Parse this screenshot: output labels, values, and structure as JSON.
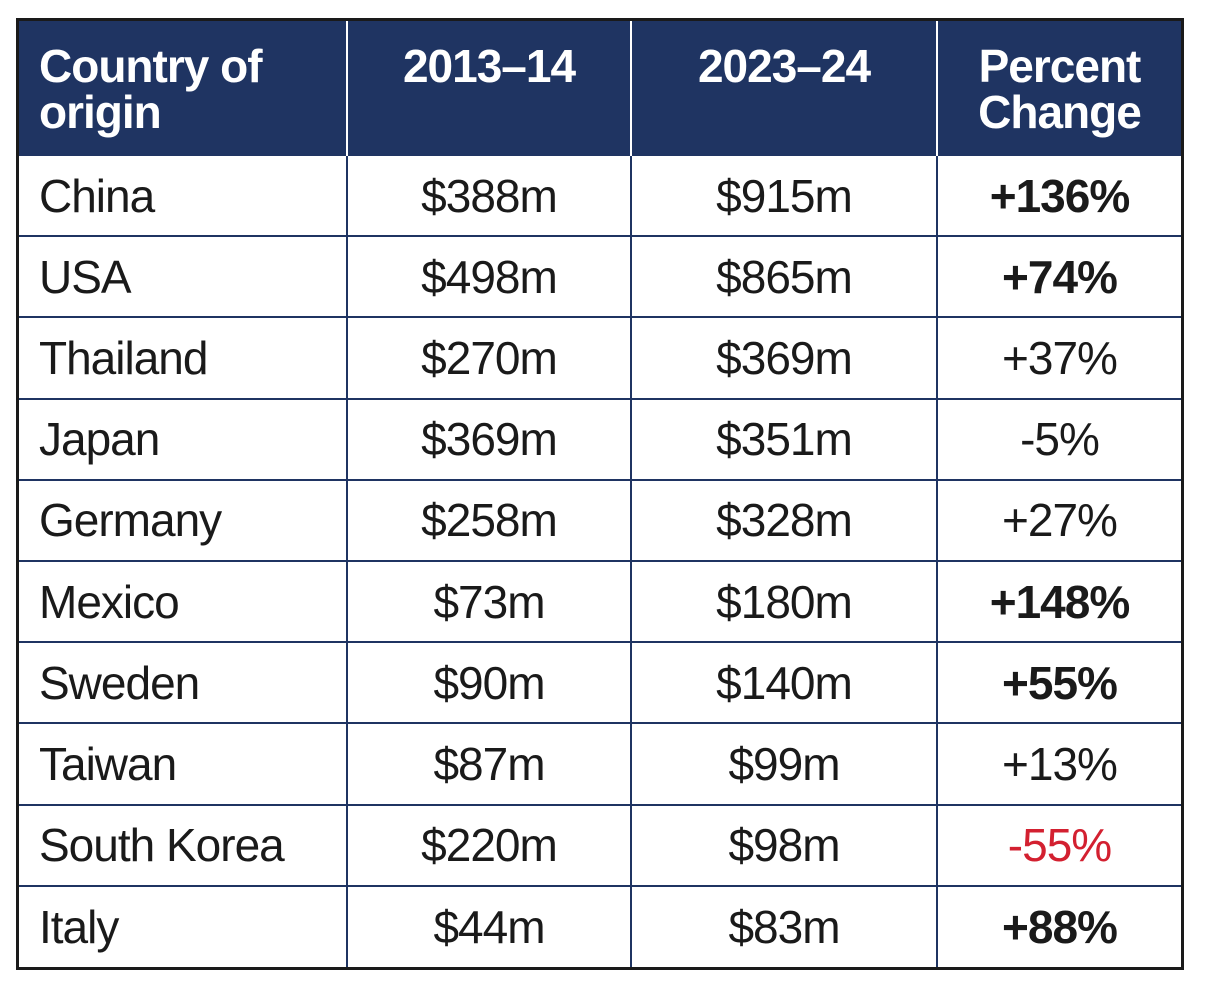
{
  "chart_data": {
    "type": "table",
    "columns": [
      "Country of origin",
      "2013–14",
      "2023–24",
      "Percent Change"
    ],
    "rows": [
      {
        "country": "China",
        "y2013": "$388m",
        "y2023": "$915m",
        "change": "+136%",
        "bold": true,
        "color": ""
      },
      {
        "country": "USA",
        "y2013": "$498m",
        "y2023": "$865m",
        "change": "+74%",
        "bold": true,
        "color": ""
      },
      {
        "country": "Thailand",
        "y2013": "$270m",
        "y2023": "$369m",
        "change": "+37%",
        "bold": false,
        "color": ""
      },
      {
        "country": "Japan",
        "y2013": "$369m",
        "y2023": "$351m",
        "change": "-5%",
        "bold": false,
        "color": ""
      },
      {
        "country": "Germany",
        "y2013": "$258m",
        "y2023": "$328m",
        "change": "+27%",
        "bold": false,
        "color": ""
      },
      {
        "country": "Mexico",
        "y2013": "$73m",
        "y2023": "$180m",
        "change": "+148%",
        "bold": true,
        "color": ""
      },
      {
        "country": "Sweden",
        "y2013": "$90m",
        "y2023": "$140m",
        "change": "+55%",
        "bold": true,
        "color": ""
      },
      {
        "country": "Taiwan",
        "y2013": "$87m",
        "y2023": "$99m",
        "change": "+13%",
        "bold": false,
        "color": ""
      },
      {
        "country": "South Korea",
        "y2013": "$220m",
        "y2023": "$98m",
        "change": "-55%",
        "bold": false,
        "color": "#d32030"
      },
      {
        "country": "Italy",
        "y2013": "$44m",
        "y2023": "$83m",
        "change": "+88%",
        "bold": true,
        "color": ""
      }
    ]
  },
  "colors": {
    "header_bg": "#1f3462",
    "header_text": "#ffffff",
    "negative_highlight": "#d32030"
  }
}
